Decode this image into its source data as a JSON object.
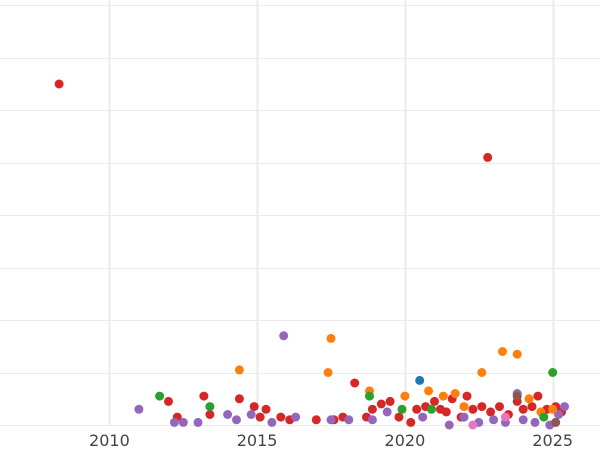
{
  "chart_data": {
    "type": "scatter",
    "title": "",
    "xlabel": "",
    "ylabel": "",
    "xlim": [
      2006.3,
      2026.6
    ],
    "ylim": [
      0,
      8.1
    ],
    "grid": true,
    "x_ticks": [
      2010,
      2015,
      2020,
      2025
    ],
    "x_tick_labels": [
      "2010",
      "2015",
      "2020",
      "2025"
    ],
    "y_gridlines": [
      0,
      1,
      2,
      3,
      4,
      5,
      6,
      7,
      8
    ],
    "colors": {
      "red": "#d62728",
      "purple": "#9467bd",
      "orange": "#ff7f0e",
      "green": "#2ca02c",
      "blue": "#1f77b4",
      "brown": "#8c564b",
      "pink": "#e377c2",
      "grid": "#ebebeb",
      "tick_text": "#444444"
    },
    "series": [
      {
        "color": "red",
        "points": [
          [
            2008.3,
            6.5
          ],
          [
            2022.8,
            5.1
          ],
          [
            2018.3,
            0.8
          ],
          [
            2024.5,
            0.55
          ],
          [
            2012.0,
            0.45
          ],
          [
            2013.2,
            0.55
          ],
          [
            2014.4,
            0.5
          ],
          [
            2014.9,
            0.35
          ],
          [
            2015.3,
            0.3
          ],
          [
            2015.1,
            0.15
          ],
          [
            2015.8,
            0.15
          ],
          [
            2016.1,
            0.1
          ],
          [
            2017.0,
            0.1
          ],
          [
            2017.6,
            0.1
          ],
          [
            2017.9,
            0.15
          ],
          [
            2018.7,
            0.15
          ],
          [
            2018.9,
            0.3
          ],
          [
            2019.2,
            0.4
          ],
          [
            2019.5,
            0.45
          ],
          [
            2019.8,
            0.15
          ],
          [
            2020.2,
            0.05
          ],
          [
            2020.4,
            0.3
          ],
          [
            2020.7,
            0.35
          ],
          [
            2021.0,
            0.45
          ],
          [
            2021.2,
            0.3
          ],
          [
            2021.4,
            0.25
          ],
          [
            2021.6,
            0.5
          ],
          [
            2021.9,
            0.15
          ],
          [
            2022.1,
            0.55
          ],
          [
            2022.3,
            0.3
          ],
          [
            2022.6,
            0.35
          ],
          [
            2022.9,
            0.25
          ],
          [
            2023.2,
            0.35
          ],
          [
            2023.5,
            0.2
          ],
          [
            2023.8,
            0.45
          ],
          [
            2024.0,
            0.3
          ],
          [
            2024.3,
            0.35
          ],
          [
            2024.8,
            0.3
          ],
          [
            2025.1,
            0.35
          ],
          [
            2025.3,
            0.25
          ],
          [
            2013.4,
            0.2
          ],
          [
            2012.3,
            0.15
          ]
        ]
      },
      {
        "color": "purple",
        "points": [
          [
            2015.9,
            1.7
          ],
          [
            2011.0,
            0.3
          ],
          [
            2012.2,
            0.05
          ],
          [
            2012.5,
            0.05
          ],
          [
            2013.0,
            0.05
          ],
          [
            2014.0,
            0.2
          ],
          [
            2014.3,
            0.1
          ],
          [
            2014.8,
            0.2
          ],
          [
            2015.5,
            0.05
          ],
          [
            2016.3,
            0.15
          ],
          [
            2017.5,
            0.1
          ],
          [
            2018.1,
            0.1
          ],
          [
            2018.9,
            0.1
          ],
          [
            2019.4,
            0.25
          ],
          [
            2020.6,
            0.15
          ],
          [
            2021.5,
            0.0
          ],
          [
            2022.0,
            0.15
          ],
          [
            2022.5,
            0.05
          ],
          [
            2023.0,
            0.1
          ],
          [
            2023.4,
            0.05
          ],
          [
            2023.8,
            0.6
          ],
          [
            2024.0,
            0.1
          ],
          [
            2024.4,
            0.05
          ],
          [
            2024.9,
            0.0
          ],
          [
            2025.2,
            0.2
          ],
          [
            2025.4,
            0.35
          ]
        ]
      },
      {
        "color": "orange",
        "points": [
          [
            2017.5,
            1.65
          ],
          [
            2023.3,
            1.4
          ],
          [
            2023.8,
            1.35
          ],
          [
            2014.4,
            1.05
          ],
          [
            2017.4,
            1.0
          ],
          [
            2022.6,
            1.0
          ],
          [
            2018.8,
            0.65
          ],
          [
            2020.0,
            0.55
          ],
          [
            2020.8,
            0.65
          ],
          [
            2021.3,
            0.55
          ],
          [
            2021.7,
            0.6
          ],
          [
            2022.0,
            0.35
          ],
          [
            2024.2,
            0.5
          ],
          [
            2024.6,
            0.25
          ],
          [
            2025.0,
            0.3
          ]
        ]
      },
      {
        "color": "green",
        "points": [
          [
            2011.7,
            0.55
          ],
          [
            2013.4,
            0.35
          ],
          [
            2018.8,
            0.55
          ],
          [
            2019.9,
            0.3
          ],
          [
            2020.9,
            0.3
          ],
          [
            2025.0,
            1.0
          ],
          [
            2024.7,
            0.15
          ]
        ]
      },
      {
        "color": "blue",
        "points": [
          [
            2020.5,
            0.85
          ]
        ]
      },
      {
        "color": "brown",
        "points": [
          [
            2023.8,
            0.55
          ],
          [
            2025.1,
            0.05
          ]
        ]
      },
      {
        "color": "pink",
        "points": [
          [
            2022.3,
            0.0
          ],
          [
            2023.4,
            0.15
          ]
        ]
      }
    ]
  }
}
